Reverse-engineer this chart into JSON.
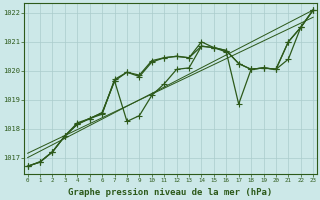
{
  "x": [
    0,
    1,
    2,
    3,
    4,
    5,
    6,
    7,
    8,
    9,
    10,
    11,
    12,
    13,
    14,
    15,
    16,
    17,
    18,
    19,
    20,
    21,
    22,
    23
  ],
  "series1": [
    1016.7,
    1016.85,
    1017.2,
    1017.75,
    1018.15,
    1018.35,
    1018.55,
    1019.65,
    1019.95,
    1019.8,
    1020.3,
    1020.45,
    1020.5,
    1020.45,
    1020.85,
    1020.8,
    1020.7,
    1020.25,
    1020.05,
    1020.1,
    1020.05,
    1021.0,
    1021.5,
    1022.1
  ],
  "series2": [
    1016.7,
    1016.85,
    1017.2,
    1017.75,
    1018.15,
    1018.35,
    1018.55,
    1019.65,
    1018.25,
    1018.45,
    1019.15,
    1019.55,
    1020.05,
    1020.1,
    1020.85,
    1020.8,
    1020.65,
    1018.85,
    1020.05,
    1020.1,
    1020.05,
    1020.4,
    1021.5,
    1022.1
  ],
  "series3": [
    1016.7,
    1016.85,
    1017.2,
    1017.75,
    1018.2,
    1018.35,
    1018.5,
    1019.7,
    1019.95,
    1019.85,
    1020.35,
    1020.45,
    1020.5,
    1020.45,
    1021.0,
    1020.8,
    1020.7,
    1020.25,
    1020.05,
    1020.1,
    1020.05,
    1021.0,
    1021.5,
    1022.1
  ],
  "trend1_x": [
    0,
    23
  ],
  "trend1_y": [
    1017.0,
    1022.1
  ],
  "trend2_x": [
    0,
    23
  ],
  "trend2_y": [
    1017.15,
    1021.85
  ],
  "ylim": [
    1016.45,
    1022.35
  ],
  "xlim": [
    -0.3,
    23.3
  ],
  "yticks": [
    1017,
    1018,
    1019,
    1020,
    1021,
    1022
  ],
  "xticks": [
    0,
    1,
    2,
    3,
    4,
    5,
    6,
    7,
    8,
    9,
    10,
    11,
    12,
    13,
    14,
    15,
    16,
    17,
    18,
    19,
    20,
    21,
    22,
    23
  ],
  "line_color": "#2d5a1b",
  "bg_color": "#cce8e8",
  "grid_color": "#aacccc",
  "xlabel": "Graphe pression niveau de la mer (hPa)",
  "xlabel_fontsize": 6.5,
  "marker_size": 2.0,
  "line_width": 0.9
}
